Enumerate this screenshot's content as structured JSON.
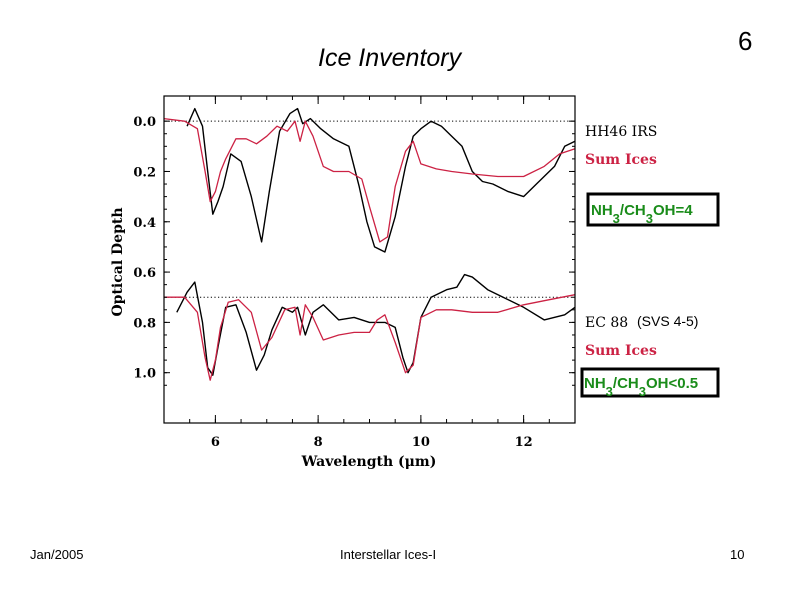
{
  "slide": {
    "title": "Ice Inventory",
    "number_top": "6",
    "footer_date": "Jan/2005",
    "footer_title": "Interstellar Ices-I",
    "footer_page": "10"
  },
  "chart_data": {
    "type": "line",
    "xlabel": "Wavelength (μm)",
    "ylabel": "Optical Depth",
    "xlim": [
      5.0,
      13.0
    ],
    "ylim": [
      1.2,
      -0.1
    ],
    "x_ticks": [
      6,
      8,
      10,
      12
    ],
    "y_ticks": [
      0.0,
      0.2,
      0.4,
      0.6,
      0.8,
      1.0
    ],
    "y_tick_labels": [
      "0.0",
      "0.2",
      "0.4",
      "0.6",
      "0.8",
      "1.0"
    ],
    "x_tick_labels": [
      "6",
      "8",
      "10",
      "12"
    ],
    "baselines": [
      0.0,
      0.7
    ],
    "colors": {
      "observed": "#000000",
      "model": "#cc2244",
      "ratio_text": "#1a8c1a"
    },
    "panels": [
      {
        "source": "HH46  IRS",
        "model_label": "Sum Ices",
        "ratio_label": "NH3/CH3OH=4",
        "series": [
          {
            "name": "HH46  IRS",
            "x": [
              5.45,
              5.6,
              5.75,
              5.85,
              5.95,
              6.05,
              6.15,
              6.3,
              6.5,
              6.7,
              6.9,
              7.05,
              7.25,
              7.45,
              7.6,
              7.7,
              7.85,
              8.05,
              8.3,
              8.6,
              8.8,
              8.95,
              9.1,
              9.3,
              9.5,
              9.7,
              9.85,
              10.0,
              10.2,
              10.4,
              10.6,
              10.8,
              11.0,
              11.2,
              11.4,
              11.7,
              12.0,
              12.3,
              12.6,
              12.8,
              13.0
            ],
            "y": [
              0.02,
              -0.05,
              0.02,
              0.2,
              0.37,
              0.32,
              0.26,
              0.13,
              0.16,
              0.3,
              0.48,
              0.28,
              0.04,
              -0.03,
              -0.05,
              0.01,
              -0.01,
              0.03,
              0.07,
              0.1,
              0.26,
              0.4,
              0.5,
              0.52,
              0.38,
              0.18,
              0.06,
              0.03,
              0.0,
              0.02,
              0.06,
              0.1,
              0.2,
              0.24,
              0.25,
              0.28,
              0.3,
              0.24,
              0.18,
              0.1,
              0.08
            ]
          },
          {
            "name": "Sum Ices",
            "x": [
              5.0,
              5.4,
              5.65,
              5.8,
              5.9,
              6.0,
              6.1,
              6.2,
              6.4,
              6.6,
              6.8,
              7.0,
              7.2,
              7.4,
              7.55,
              7.65,
              7.75,
              7.9,
              8.1,
              8.3,
              8.6,
              8.85,
              9.0,
              9.2,
              9.35,
              9.5,
              9.7,
              9.85,
              10.0,
              10.3,
              10.6,
              11.0,
              11.5,
              12.0,
              12.4,
              12.7,
              13.0
            ],
            "y": [
              -0.01,
              0.0,
              0.03,
              0.2,
              0.32,
              0.28,
              0.2,
              0.15,
              0.07,
              0.07,
              0.09,
              0.06,
              0.02,
              0.04,
              0.0,
              0.08,
              0.0,
              0.06,
              0.18,
              0.2,
              0.2,
              0.23,
              0.34,
              0.48,
              0.46,
              0.26,
              0.12,
              0.08,
              0.17,
              0.19,
              0.2,
              0.21,
              0.22,
              0.22,
              0.18,
              0.13,
              0.11
            ]
          }
        ]
      },
      {
        "source": "EC  88",
        "source_note": "(SVS 4-5)",
        "model_label": "Sum Ices",
        "ratio_label": "NH3/CH3OH<0.5",
        "series": [
          {
            "name": "EC  88",
            "x": [
              5.25,
              5.45,
              5.6,
              5.75,
              5.85,
              5.95,
              6.05,
              6.2,
              6.4,
              6.6,
              6.8,
              6.95,
              7.1,
              7.3,
              7.5,
              7.6,
              7.75,
              7.9,
              8.1,
              8.4,
              8.7,
              9.0,
              9.3,
              9.5,
              9.65,
              9.75,
              9.85,
              10.0,
              10.2,
              10.5,
              10.7,
              10.85,
              11.0,
              11.3,
              11.6,
              12.0,
              12.4,
              12.8,
              13.0
            ],
            "y": [
              0.76,
              0.68,
              0.64,
              0.8,
              0.98,
              1.01,
              0.9,
              0.74,
              0.73,
              0.84,
              0.99,
              0.93,
              0.83,
              0.74,
              0.76,
              0.74,
              0.85,
              0.76,
              0.73,
              0.79,
              0.78,
              0.8,
              0.8,
              0.82,
              0.94,
              1.0,
              0.96,
              0.78,
              0.7,
              0.67,
              0.66,
              0.61,
              0.62,
              0.67,
              0.7,
              0.74,
              0.79,
              0.77,
              0.74
            ]
          },
          {
            "name": "Sum Ices",
            "x": [
              5.0,
              5.4,
              5.65,
              5.8,
              5.9,
              6.0,
              6.1,
              6.25,
              6.45,
              6.7,
              6.9,
              7.1,
              7.35,
              7.55,
              7.65,
              7.75,
              7.9,
              8.1,
              8.4,
              8.7,
              9.0,
              9.15,
              9.3,
              9.5,
              9.7,
              9.85,
              10.0,
              10.3,
              10.6,
              11.0,
              11.5,
              12.0,
              12.5,
              13.0
            ],
            "y": [
              0.7,
              0.7,
              0.76,
              0.94,
              1.03,
              0.95,
              0.82,
              0.72,
              0.71,
              0.76,
              0.91,
              0.86,
              0.75,
              0.74,
              0.85,
              0.73,
              0.78,
              0.87,
              0.85,
              0.84,
              0.84,
              0.79,
              0.77,
              0.88,
              1.0,
              0.97,
              0.78,
              0.75,
              0.75,
              0.76,
              0.76,
              0.73,
              0.71,
              0.69
            ]
          }
        ]
      }
    ]
  }
}
